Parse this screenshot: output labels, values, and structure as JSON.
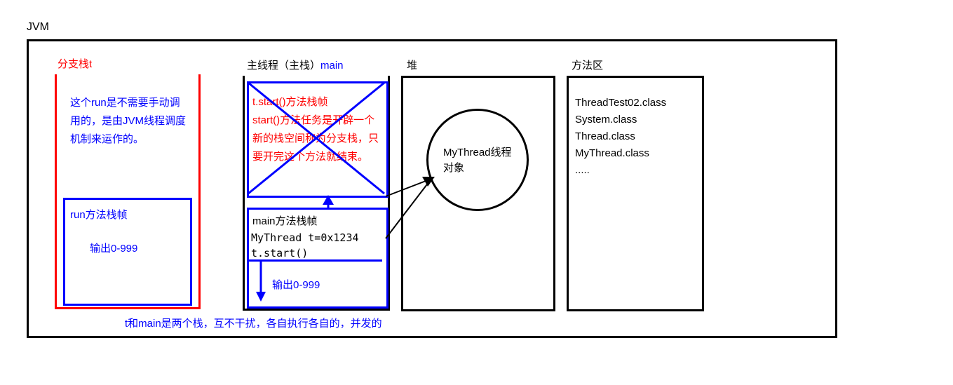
{
  "title": "JVM",
  "branchStack": {
    "title": "分支栈t",
    "runDesc": "这个run是不需要手动调用的，是由JVM线程调度机制来运作的。",
    "runFrameTitle": "run方法栈帧",
    "runFrameBody": "输出0-999",
    "borderColor": "#ff0000"
  },
  "mainStack": {
    "title": "主线程（主栈）main",
    "startFrame": {
      "line1": "t.start()方法栈帧",
      "line2": "start()方法任务是开辟一个新的栈空间称为分支栈，只要开完这个方法就结束。"
    },
    "mainFrame": {
      "title": "main方法栈帧",
      "line1": "MyThread t=0x1234",
      "line2": "t.start()",
      "output": "输出0-999"
    }
  },
  "heap": {
    "title": "堆",
    "obj1": "MyThread线程",
    "obj2": "对象"
  },
  "methodArea": {
    "title": "方法区",
    "c1": "ThreadTest02.class",
    "c2": "System.class",
    "c3": "Thread.class",
    "c4": "MyThread.class",
    "c5": "....."
  },
  "footer": "t和main是两个栈，互不干扰，各自执行各自的，并发的",
  "colors": {
    "black": "#000000",
    "red": "#ff0000",
    "blue": "#0000ff"
  },
  "fontSize": 15
}
